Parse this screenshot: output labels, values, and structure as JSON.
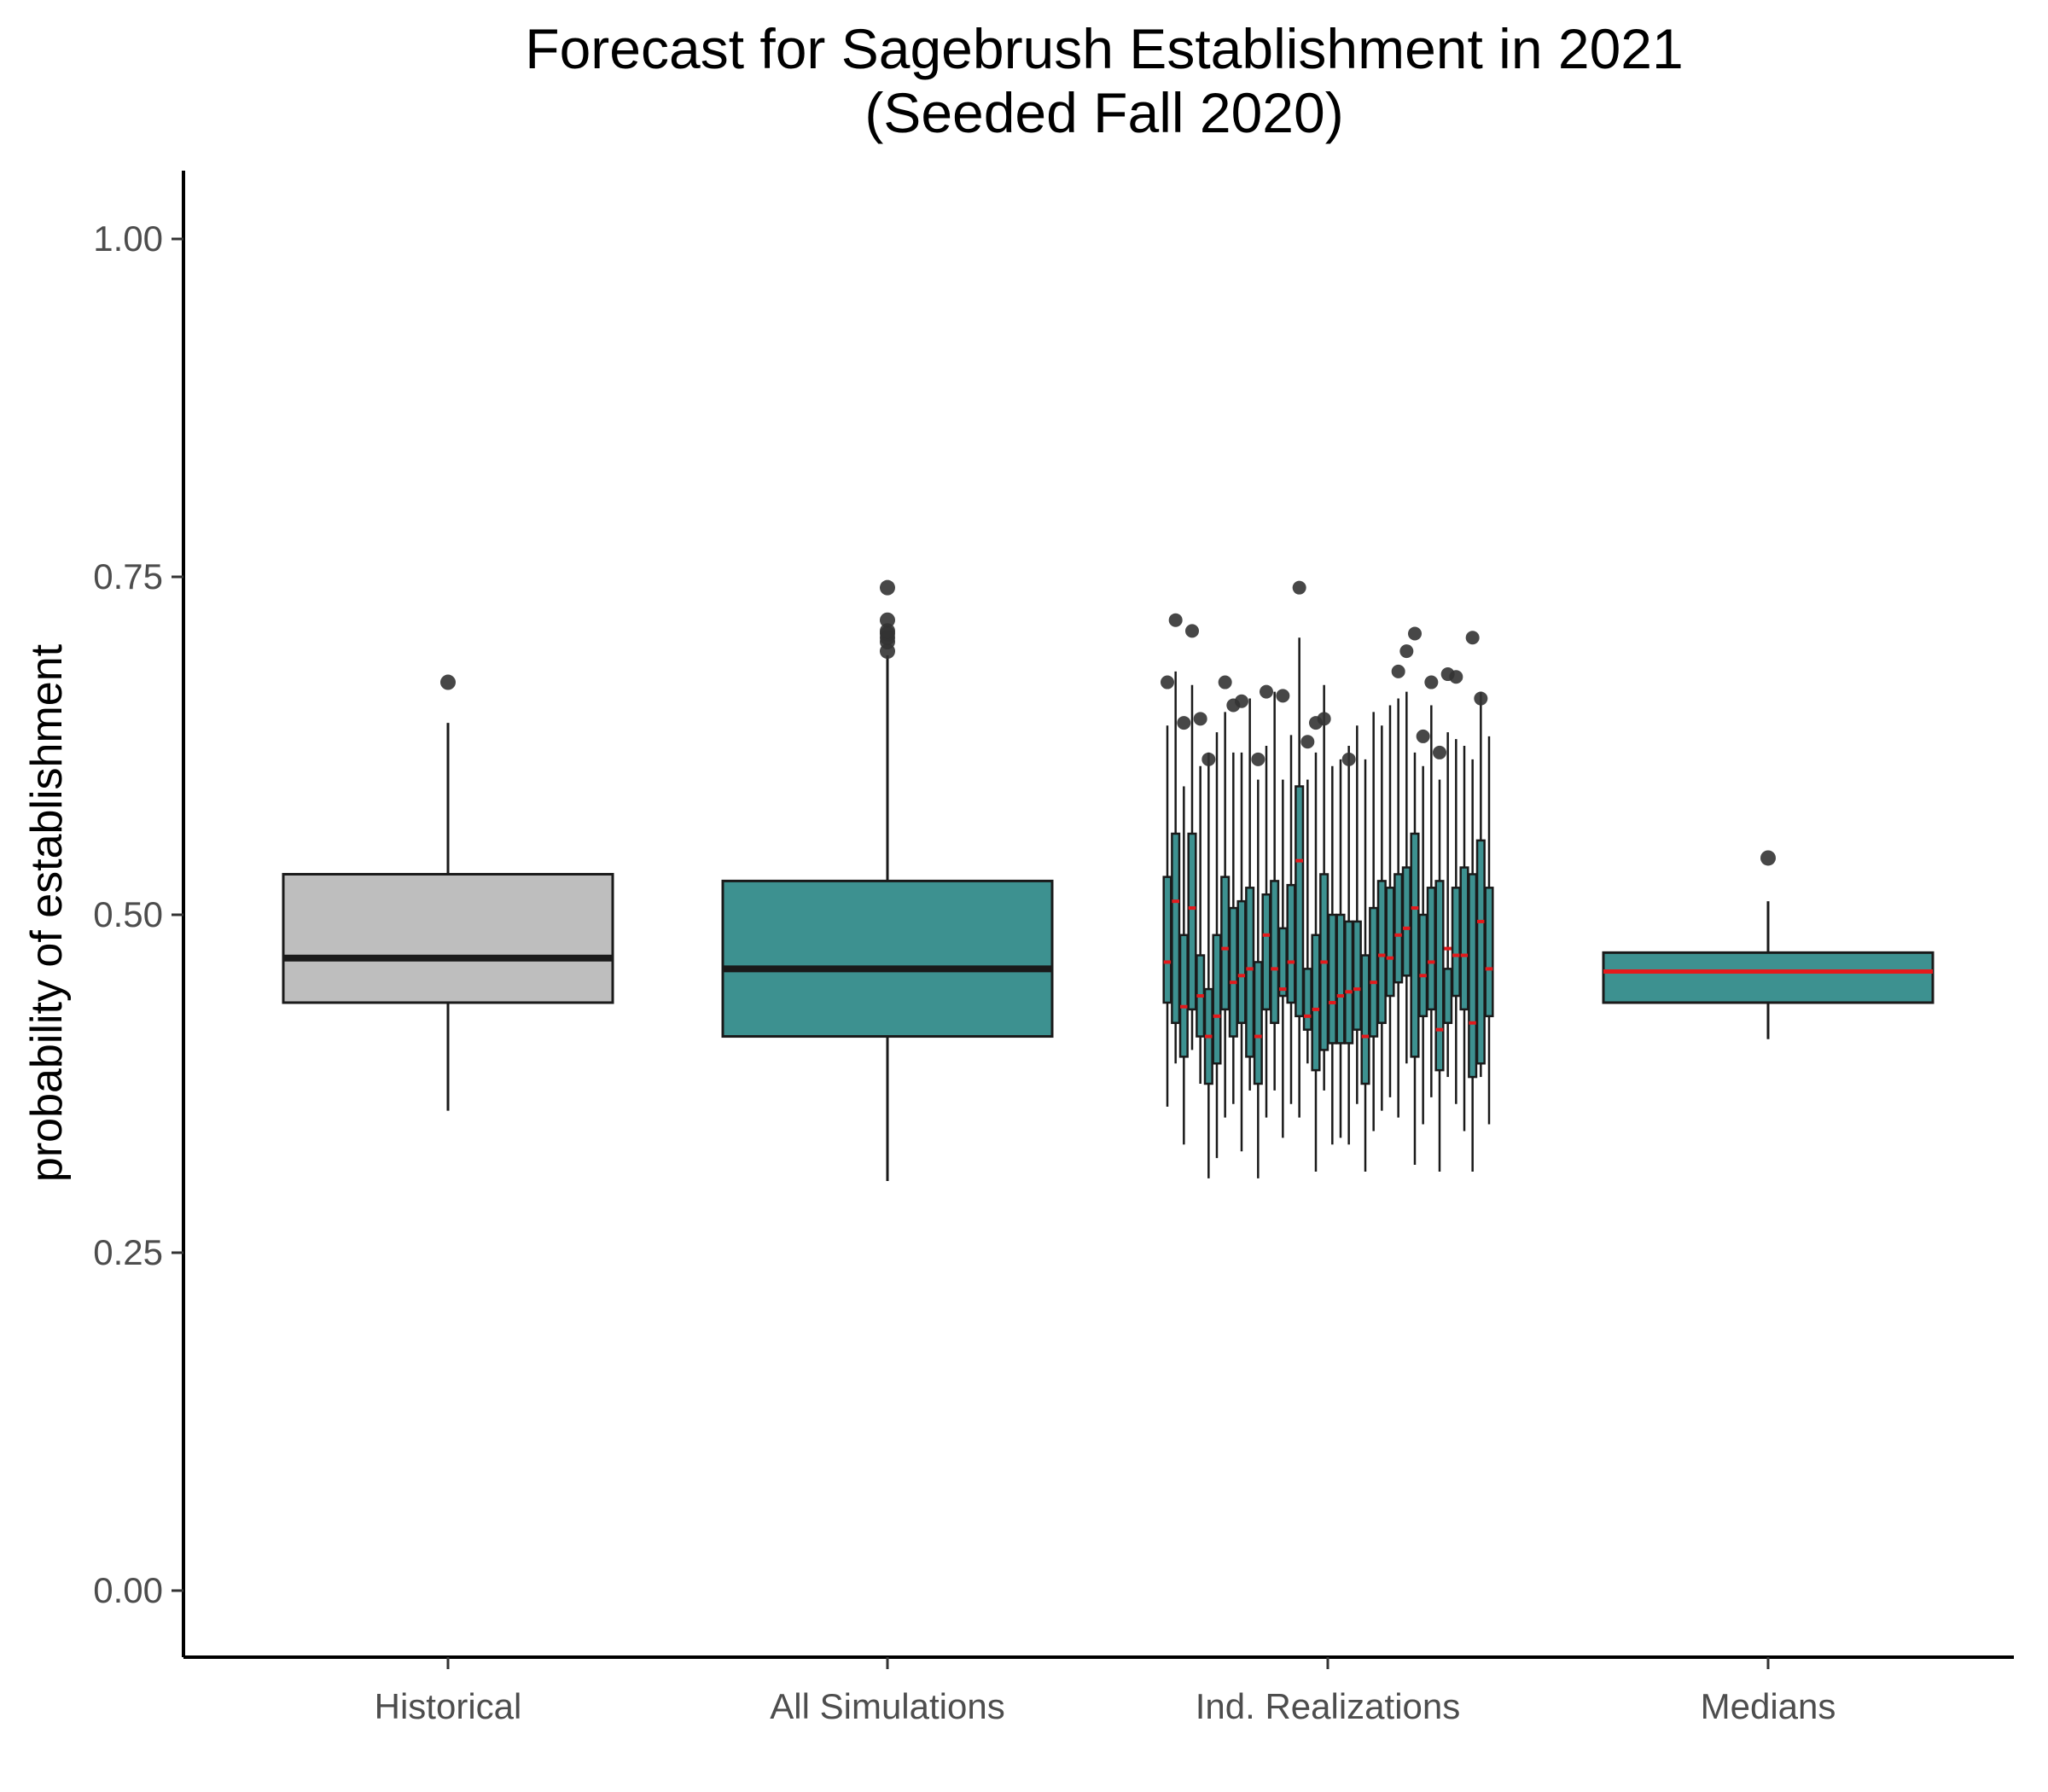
{
  "chart_data": {
    "type": "boxplot",
    "title": [
      "Forecast for Sagebrush Establishment in 2021",
      "(Seeded Fall 2020)"
    ],
    "xlabel": "",
    "ylabel": "probability of establishment",
    "ylim": [
      -0.05,
      1.05
    ],
    "yticks": [
      "0.00",
      "0.25",
      "0.50",
      "0.75",
      "1.00"
    ],
    "ytick_values": [
      0,
      0.25,
      0.5,
      0.75,
      1.0
    ],
    "categories": [
      "Historical",
      "All Simulations",
      "Ind. Realizations",
      "Medians"
    ],
    "grid": false,
    "legend": "none",
    "colors": {
      "historical_fill": "#bebebe",
      "simulation_fill": "#3d9190",
      "outline": "#1a1a1a",
      "median_simulation": "#1a1a1a",
      "median_realization": "#e41a1c",
      "outlier": "#333333",
      "axis": "#000000"
    },
    "boxes": [
      {
        "category": "Historical",
        "fill": "historical",
        "median_color": "dark",
        "whisker_low": 0.355,
        "q1": 0.435,
        "median": 0.468,
        "q3": 0.53,
        "whisker_high": 0.642,
        "outliers": [
          0.672
        ]
      },
      {
        "category": "All Simulations",
        "fill": "simulation",
        "median_color": "dark",
        "whisker_low": 0.303,
        "q1": 0.41,
        "median": 0.46,
        "q3": 0.525,
        "whisker_high": 0.692,
        "outliers": [
          0.695,
          0.702,
          0.705,
          0.708,
          0.71,
          0.718,
          0.742
        ]
      },
      {
        "category": "Medians",
        "fill": "simulation",
        "median_color": "red",
        "whisker_low": 0.408,
        "q1": 0.435,
        "median": 0.458,
        "q3": 0.472,
        "whisker_high": 0.51,
        "outliers": [
          0.542
        ]
      }
    ],
    "realizations": {
      "category": "Ind. Realizations",
      "count": 40,
      "whisker_low": [
        0.358,
        0.39,
        0.33,
        0.4,
        0.375,
        0.305,
        0.32,
        0.35,
        0.36,
        0.325,
        0.37,
        0.305,
        0.35,
        0.37,
        0.335,
        0.36,
        0.35,
        0.39,
        0.31,
        0.37,
        0.33,
        0.335,
        0.33,
        0.36,
        0.31,
        0.34,
        0.355,
        0.365,
        0.35,
        0.39,
        0.315,
        0.345,
        0.365,
        0.31,
        0.38,
        0.36,
        0.34,
        0.31,
        0.38,
        0.345
      ],
      "q1": [
        0.435,
        0.42,
        0.395,
        0.43,
        0.41,
        0.375,
        0.39,
        0.43,
        0.41,
        0.42,
        0.395,
        0.375,
        0.43,
        0.42,
        0.44,
        0.435,
        0.425,
        0.415,
        0.385,
        0.4,
        0.405,
        0.405,
        0.405,
        0.415,
        0.375,
        0.41,
        0.42,
        0.44,
        0.45,
        0.455,
        0.395,
        0.425,
        0.43,
        0.385,
        0.42,
        0.44,
        0.43,
        0.38,
        0.39,
        0.425
      ],
      "median": [
        0.465,
        0.51,
        0.432,
        0.505,
        0.44,
        0.41,
        0.425,
        0.475,
        0.45,
        0.455,
        0.46,
        0.41,
        0.485,
        0.46,
        0.445,
        0.465,
        0.54,
        0.425,
        0.43,
        0.465,
        0.435,
        0.44,
        0.443,
        0.445,
        0.41,
        0.45,
        0.47,
        0.468,
        0.485,
        0.49,
        0.505,
        0.455,
        0.465,
        0.415,
        0.475,
        0.47,
        0.47,
        0.42,
        0.495,
        0.46
      ],
      "q3": [
        0.528,
        0.56,
        0.485,
        0.56,
        0.47,
        0.445,
        0.485,
        0.528,
        0.505,
        0.51,
        0.52,
        0.465,
        0.515,
        0.525,
        0.49,
        0.522,
        0.595,
        0.46,
        0.485,
        0.53,
        0.5,
        0.5,
        0.495,
        0.495,
        0.47,
        0.505,
        0.525,
        0.52,
        0.53,
        0.535,
        0.56,
        0.5,
        0.52,
        0.525,
        0.46,
        0.52,
        0.535,
        0.53,
        0.555,
        0.52
      ],
      "whisker_high": [
        0.64,
        0.68,
        0.595,
        0.67,
        0.61,
        0.62,
        0.635,
        0.65,
        0.62,
        0.62,
        0.66,
        0.6,
        0.625,
        0.665,
        0.6,
        0.633,
        0.705,
        0.6,
        0.62,
        0.67,
        0.61,
        0.615,
        0.625,
        0.64,
        0.615,
        0.65,
        0.64,
        0.655,
        0.66,
        0.665,
        0.62,
        0.61,
        0.655,
        0.6,
        0.635,
        0.63,
        0.625,
        0.615,
        0.665,
        0.632
      ],
      "outliers": [
        [
          0.672
        ],
        [
          0.718
        ],
        [
          0.642
        ],
        [
          0.71
        ],
        [
          0.645
        ],
        [
          0.615
        ],
        [],
        [
          0.672
        ],
        [
          0.655
        ],
        [
          0.658
        ],
        [],
        [
          0.615
        ],
        [
          0.665
        ],
        [],
        [
          0.662
        ],
        [],
        [
          0.742
        ],
        [
          0.628
        ],
        [
          0.642
        ],
        [
          0.645
        ],
        [],
        [],
        [
          0.615
        ],
        [],
        [],
        [],
        [],
        [],
        [
          0.68
        ],
        [
          0.695
        ],
        [
          0.708
        ],
        [
          0.632
        ],
        [
          0.672
        ],
        [
          0.62
        ],
        [
          0.678
        ],
        [
          0.676
        ],
        [],
        [
          0.705
        ],
        [
          0.66
        ],
        []
      ]
    }
  }
}
